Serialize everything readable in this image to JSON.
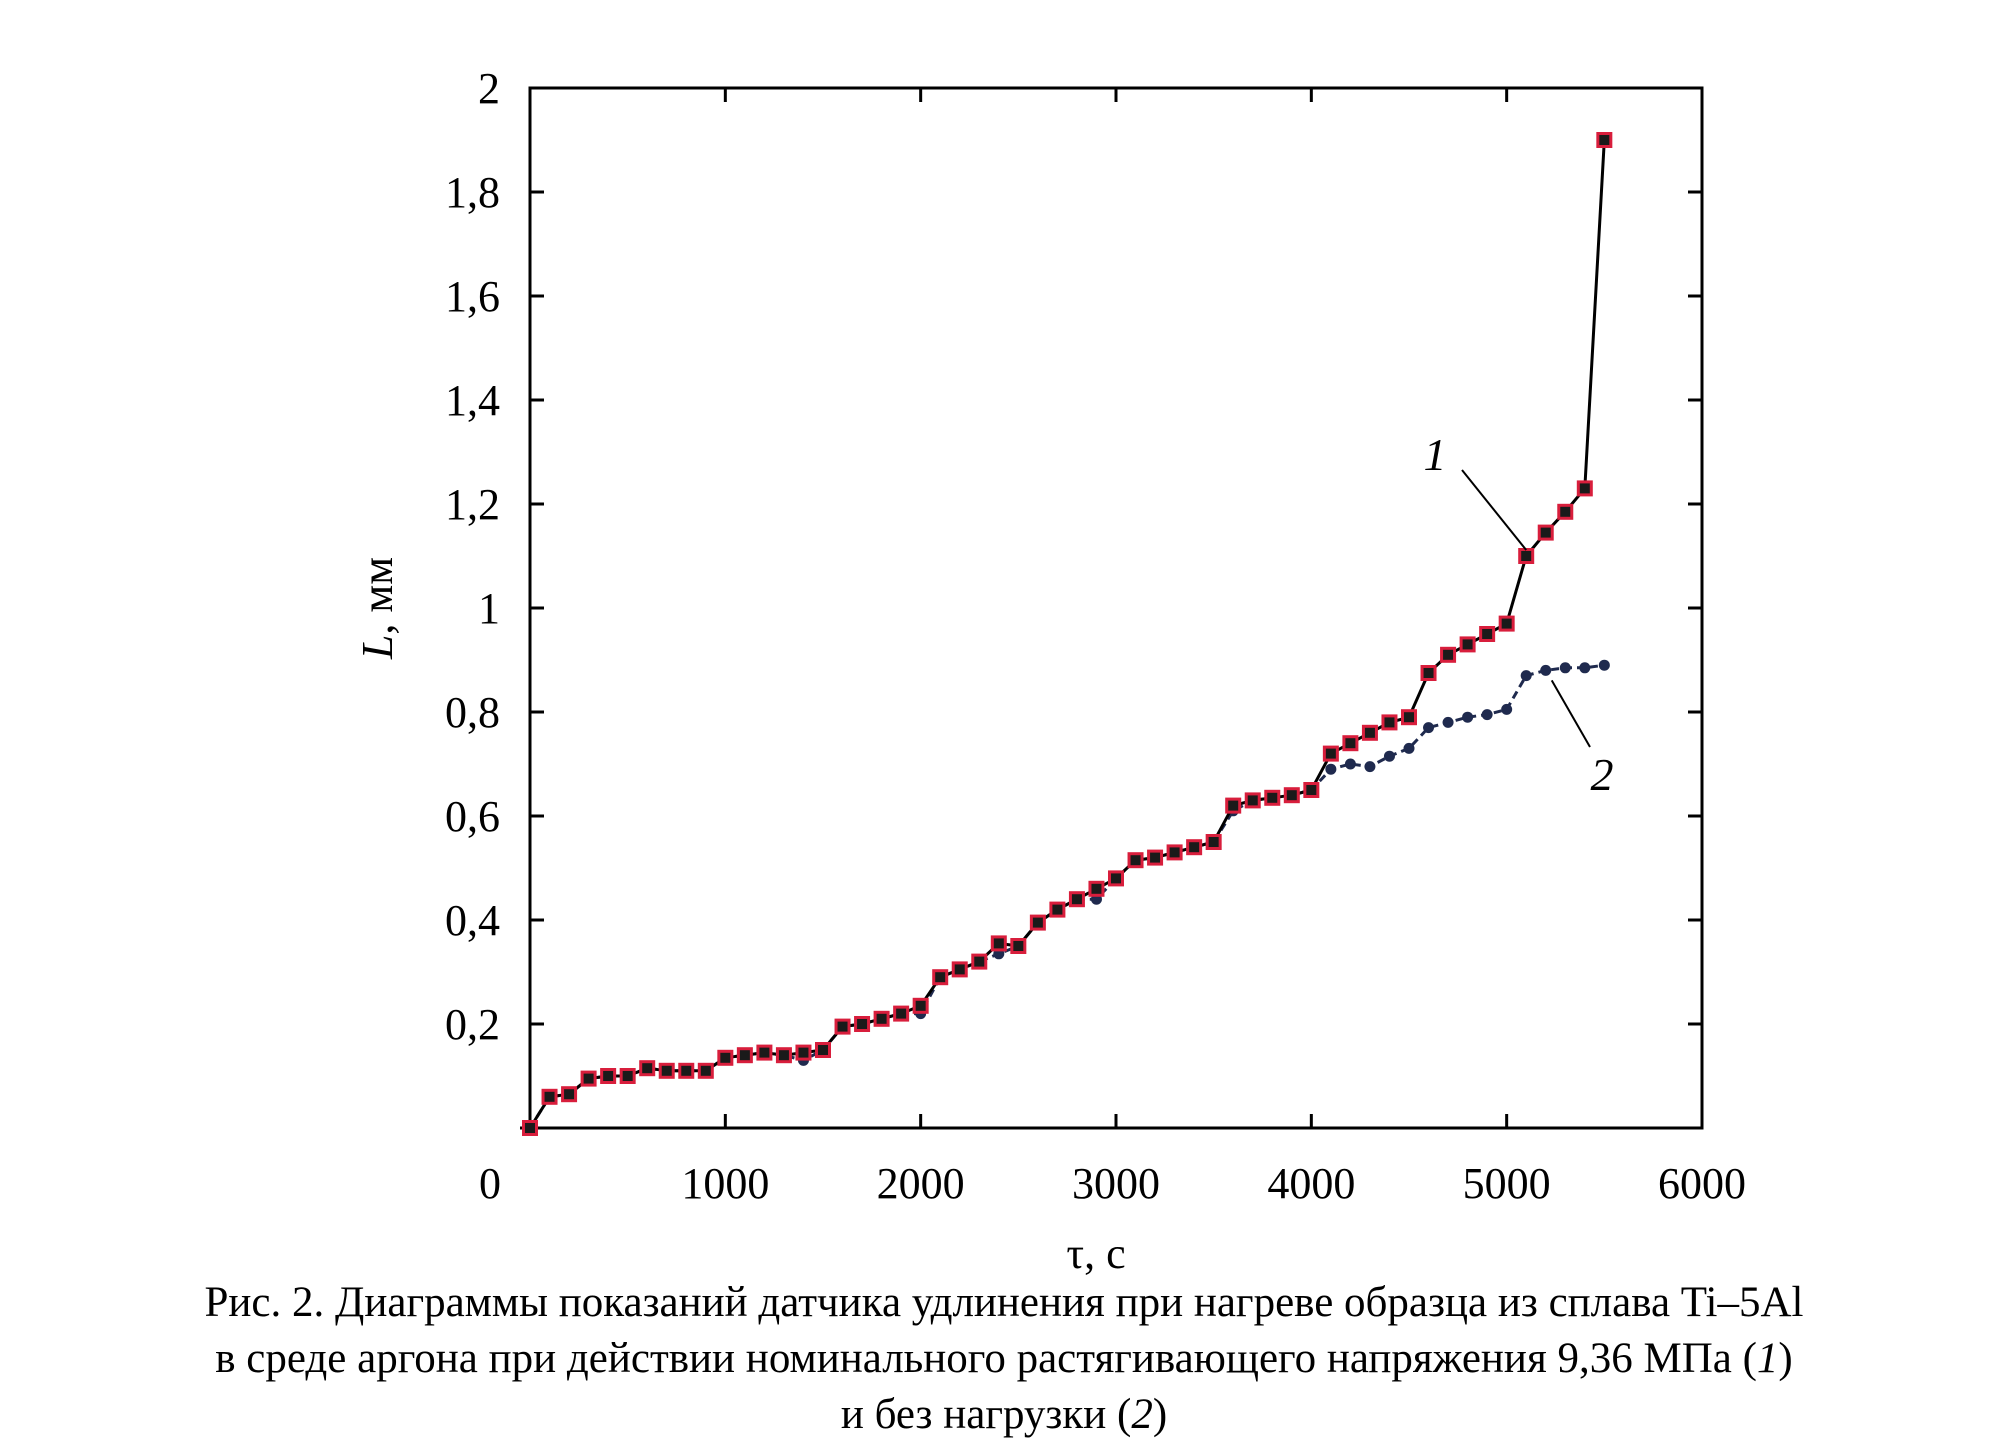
{
  "chart_data": {
    "type": "line",
    "xlabel": "τ, с",
    "ylabel_var": "L",
    "ylabel_unit": ", мм",
    "xlim": [
      0,
      6000
    ],
    "ylim": [
      0,
      2
    ],
    "xticks": [
      0,
      1000,
      2000,
      3000,
      4000,
      5000,
      6000
    ],
    "xtick_labels": [
      "0",
      "1000",
      "2000",
      "3000",
      "4000",
      "5000",
      "6000"
    ],
    "yticks": [
      0.2,
      0.4,
      0.6,
      0.8,
      1,
      1.2,
      1.4,
      1.6,
      1.8,
      2
    ],
    "ytick_labels": [
      "0,2",
      "0,4",
      "0,6",
      "0,8",
      "1",
      "1,2",
      "1,4",
      "1,6",
      "1,8",
      "2"
    ],
    "grid": false,
    "legend": "none",
    "series": [
      {
        "name": "1",
        "color": "#000000",
        "marker_color": "#d81e3c",
        "marker": "square",
        "x": [
          0,
          100,
          200,
          300,
          400,
          500,
          600,
          700,
          800,
          900,
          1000,
          1100,
          1200,
          1300,
          1400,
          1500,
          1600,
          1700,
          1800,
          1900,
          2000,
          2100,
          2200,
          2300,
          2400,
          2500,
          2600,
          2700,
          2800,
          2900,
          3000,
          3100,
          3200,
          3300,
          3400,
          3500,
          3600,
          3700,
          3800,
          3900,
          4000,
          4100,
          4200,
          4300,
          4400,
          4500,
          4600,
          4700,
          4800,
          4900,
          5000,
          5100,
          5200,
          5300,
          5400,
          5500
        ],
        "y": [
          0.0,
          0.06,
          0.065,
          0.095,
          0.1,
          0.1,
          0.115,
          0.11,
          0.11,
          0.11,
          0.135,
          0.14,
          0.145,
          0.14,
          0.145,
          0.15,
          0.195,
          0.2,
          0.21,
          0.22,
          0.235,
          0.29,
          0.305,
          0.32,
          0.355,
          0.35,
          0.395,
          0.42,
          0.44,
          0.46,
          0.48,
          0.515,
          0.52,
          0.53,
          0.54,
          0.55,
          0.62,
          0.63,
          0.635,
          0.64,
          0.65,
          0.72,
          0.74,
          0.76,
          0.78,
          0.79,
          0.875,
          0.91,
          0.93,
          0.95,
          0.97,
          1.1,
          1.145,
          1.185,
          1.23,
          1.9
        ]
      },
      {
        "name": "2",
        "color": "#1f2a4e",
        "marker_color": "#1f2a4e",
        "marker": "circle",
        "dashed": true,
        "x": [
          0,
          100,
          200,
          300,
          400,
          500,
          600,
          700,
          800,
          900,
          1000,
          1100,
          1200,
          1300,
          1400,
          1500,
          1600,
          1700,
          1800,
          1900,
          2000,
          2100,
          2200,
          2300,
          2400,
          2500,
          2600,
          2700,
          2800,
          2900,
          3000,
          3100,
          3200,
          3300,
          3400,
          3500,
          3600,
          3700,
          3800,
          3900,
          4000,
          4100,
          4200,
          4300,
          4400,
          4500,
          4600,
          4700,
          4800,
          4900,
          5000,
          5100,
          5200,
          5300,
          5400,
          5500
        ],
        "y": [
          0.0,
          0.06,
          0.065,
          0.095,
          0.1,
          0.1,
          0.115,
          0.11,
          0.11,
          0.11,
          0.135,
          0.14,
          0.145,
          0.14,
          0.13,
          0.15,
          0.195,
          0.2,
          0.21,
          0.22,
          0.22,
          0.29,
          0.305,
          0.32,
          0.335,
          0.35,
          0.395,
          0.42,
          0.44,
          0.44,
          0.48,
          0.515,
          0.52,
          0.53,
          0.54,
          0.55,
          0.61,
          0.63,
          0.635,
          0.64,
          0.65,
          0.69,
          0.7,
          0.695,
          0.715,
          0.73,
          0.77,
          0.78,
          0.79,
          0.795,
          0.805,
          0.87,
          0.88,
          0.885,
          0.885,
          0.89
        ]
      }
    ]
  },
  "caption": {
    "line1": "Рис. 2. Диаграммы показаний датчика удлинения при нагреве образца из сплава Ti–5Al",
    "line2_prefix": "в среде аргона при действии номинального растягивающего напряжения 9,36 МПа (",
    "line2_num": "1",
    "line2_suffix": ")",
    "line3_prefix": "и без нагрузки (",
    "line3_num": "2",
    "line3_suffix": ")"
  }
}
